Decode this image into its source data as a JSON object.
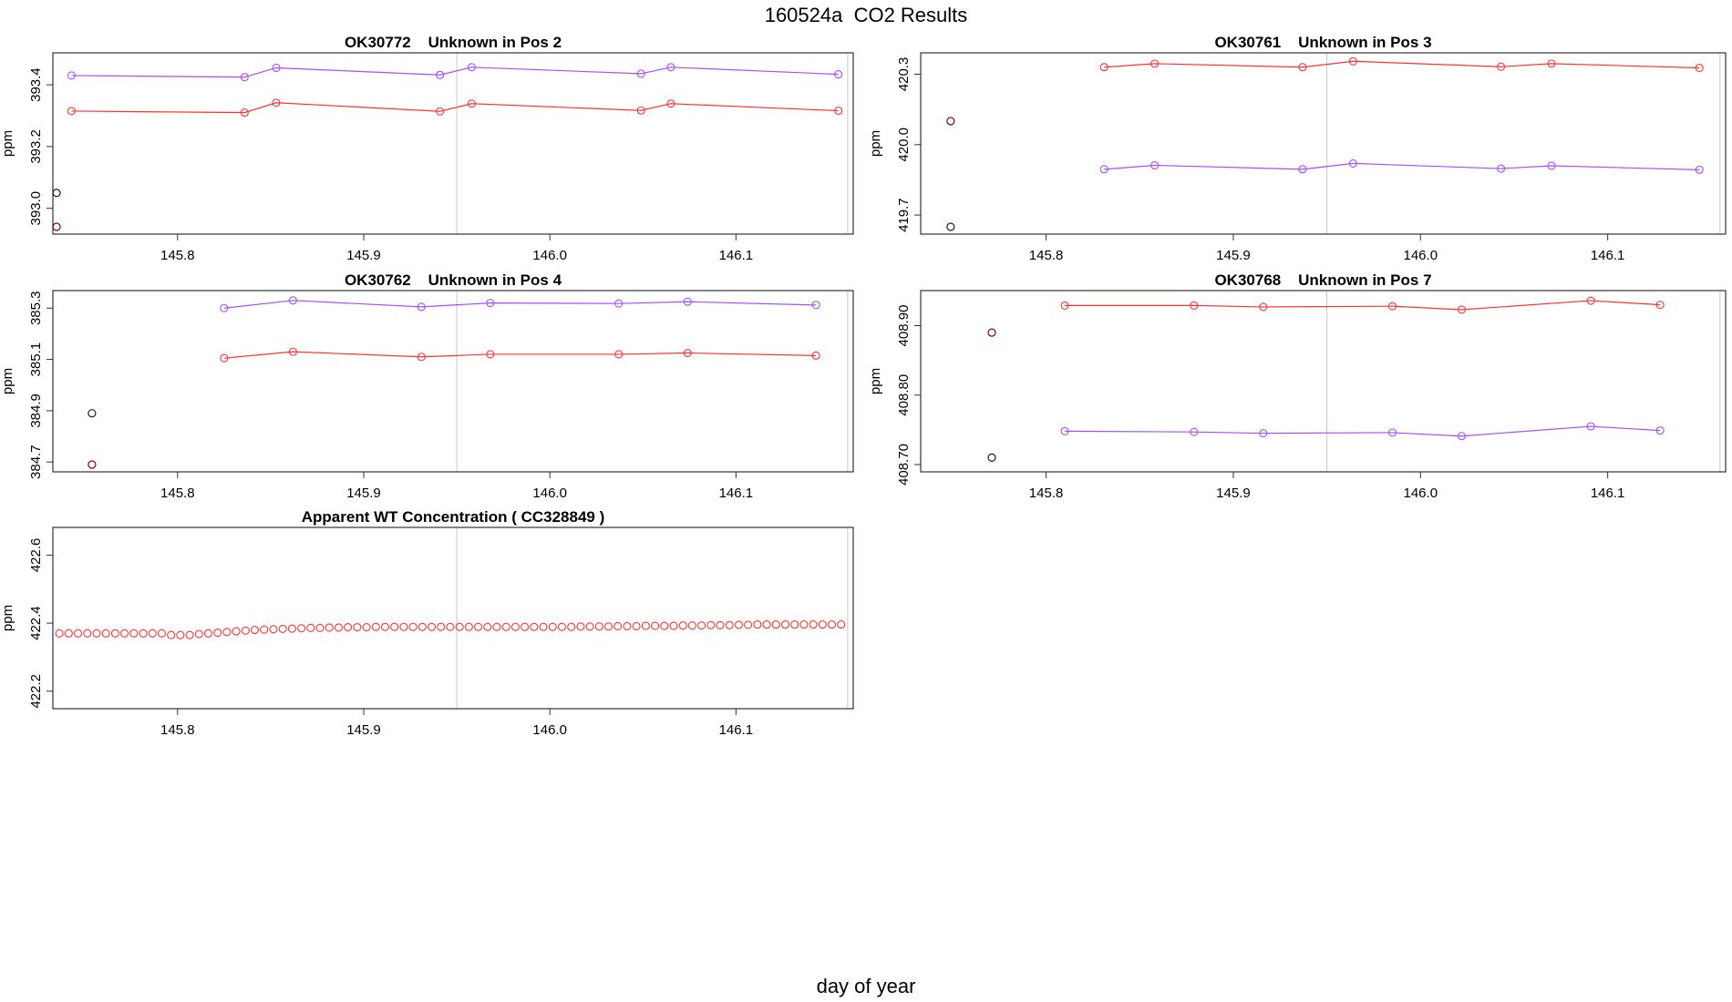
{
  "title": "160524a  CO2 Results",
  "xlabel": "day of year",
  "colors": {
    "series_red": "#ff3333",
    "series_purple": "#a64dff",
    "ref_dark_red": "#8b0000",
    "ref_dark_purple": "#2b0a4d",
    "frame": "#333333",
    "guide": "#c8c8c8"
  },
  "chart_data": [
    {
      "type": "line",
      "title": "OK30772    Unknown in Pos 2",
      "ylabel": "ppm",
      "xlim": [
        145.733,
        146.163
      ],
      "ylim": [
        392.94,
        393.48
      ],
      "xticks": [
        "145.8",
        "145.9",
        "146.0",
        "146.1"
      ],
      "yticks": [
        "393.0",
        "393.2",
        "393.4"
      ],
      "vlines": [
        145.95,
        146.16
      ],
      "series": [
        {
          "color": "purple",
          "x": [
            145.743,
            145.836,
            145.853,
            145.941,
            145.958,
            146.049,
            146.065,
            146.155
          ],
          "y": [
            393.43,
            393.425,
            393.455,
            393.432,
            393.457,
            393.436,
            393.457,
            393.434
          ]
        },
        {
          "color": "red",
          "x": [
            145.743,
            145.836,
            145.853,
            145.941,
            145.958,
            146.049,
            146.065,
            146.155
          ],
          "y": [
            393.315,
            393.31,
            393.342,
            393.314,
            393.339,
            393.317,
            393.339,
            393.316
          ]
        }
      ],
      "points": [
        {
          "color": "dark_purple",
          "x": 145.735,
          "y": 393.05
        },
        {
          "color": "dark_red",
          "x": 145.735,
          "y": 392.94
        }
      ]
    },
    {
      "type": "line",
      "title": "OK30761    Unknown in Pos 3",
      "ylabel": "ppm",
      "xlim": [
        145.733,
        146.163
      ],
      "ylim": [
        419.65,
        420.36
      ],
      "xticks": [
        "145.8",
        "145.9",
        "146.0",
        "146.1"
      ],
      "yticks": [
        "419.7",
        "420.0",
        "420.3"
      ],
      "vlines": [
        145.95,
        146.16
      ],
      "series": [
        {
          "color": "red",
          "x": [
            145.831,
            145.858,
            145.937,
            145.964,
            146.043,
            146.07,
            146.149
          ],
          "y": [
            420.33,
            420.345,
            420.33,
            420.355,
            420.332,
            420.345,
            420.327
          ]
        },
        {
          "color": "purple",
          "x": [
            145.831,
            145.858,
            145.937,
            145.964,
            146.043,
            146.07,
            146.149
          ],
          "y": [
            419.895,
            419.912,
            419.895,
            419.92,
            419.898,
            419.91,
            419.893
          ]
        }
      ],
      "points": [
        {
          "color": "dark_red",
          "x": 145.749,
          "y": 420.1
        },
        {
          "color": "dark_purple",
          "x": 145.749,
          "y": 419.65
        }
      ]
    },
    {
      "type": "line",
      "title": "OK30762    Unknown in Pos 4",
      "ylabel": "ppm",
      "xlim": [
        145.733,
        146.163
      ],
      "ylim": [
        384.69,
        385.34
      ],
      "xticks": [
        "145.8",
        "145.9",
        "146.0",
        "146.1"
      ],
      "yticks": [
        "384.7",
        "384.9",
        "385.1",
        "385.3"
      ],
      "vlines": [
        145.95,
        146.16
      ],
      "series": [
        {
          "color": "purple",
          "x": [
            145.825,
            145.862,
            145.931,
            145.968,
            146.037,
            146.074,
            146.143
          ],
          "y": [
            385.3,
            385.33,
            385.305,
            385.32,
            385.318,
            385.325,
            385.312
          ]
        },
        {
          "color": "red",
          "x": [
            145.825,
            145.862,
            145.931,
            145.968,
            146.037,
            146.074,
            146.143
          ],
          "y": [
            385.105,
            385.13,
            385.11,
            385.12,
            385.12,
            385.125,
            385.115
          ]
        }
      ],
      "points": [
        {
          "color": "dark_purple",
          "x": 145.754,
          "y": 384.89
        },
        {
          "color": "dark_red",
          "x": 145.754,
          "y": 384.69
        }
      ]
    },
    {
      "type": "line",
      "title": "OK30768    Unknown in Pos 7",
      "ylabel": "ppm",
      "xlim": [
        145.733,
        146.163
      ],
      "ylim": [
        408.7,
        408.94
      ],
      "xticks": [
        "145.8",
        "145.9",
        "146.0",
        "146.1"
      ],
      "yticks": [
        "408.70",
        "408.80",
        "408.90"
      ],
      "vlines": [
        145.95,
        146.16
      ],
      "series": [
        {
          "color": "red",
          "x": [
            145.81,
            145.879,
            145.916,
            145.985,
            146.022,
            146.091,
            146.128
          ],
          "y": [
            408.929,
            408.929,
            408.927,
            408.928,
            408.923,
            408.936,
            408.93
          ]
        },
        {
          "color": "purple",
          "x": [
            145.81,
            145.879,
            145.916,
            145.985,
            146.022,
            146.091,
            146.128
          ],
          "y": [
            408.748,
            408.747,
            408.745,
            408.746,
            408.741,
            408.755,
            408.749
          ]
        }
      ],
      "points": [
        {
          "color": "dark_red",
          "x": 145.771,
          "y": 408.89
        },
        {
          "color": "dark_purple",
          "x": 145.771,
          "y": 408.71
        }
      ]
    },
    {
      "type": "scatter",
      "title": "Apparent WT Concentration ( CC328849 )",
      "ylabel": "ppm",
      "xlim": [
        145.733,
        146.163
      ],
      "ylim": [
        422.17,
        422.66
      ],
      "xticks": [
        "145.8",
        "145.9",
        "146.0",
        "146.1"
      ],
      "yticks": [
        "422.2",
        "422.4",
        "422.6"
      ],
      "vlines": [
        145.95,
        146.16
      ],
      "series": [
        {
          "color": "red",
          "x_start": 145.7365,
          "x_step": 0.005,
          "count": 85,
          "y": [
            422.37,
            422.37,
            422.37,
            422.37,
            422.37,
            422.37,
            422.37,
            422.37,
            422.37,
            422.37,
            422.37,
            422.37,
            422.365,
            422.365,
            422.365,
            422.368,
            422.37,
            422.372,
            422.374,
            422.376,
            422.378,
            422.38,
            422.381,
            422.382,
            422.383,
            422.384,
            422.385,
            422.386,
            422.386,
            422.387,
            422.387,
            422.388,
            422.388,
            422.388,
            422.389,
            422.389,
            422.389,
            422.389,
            422.389,
            422.389,
            422.389,
            422.389,
            422.389,
            422.389,
            422.389,
            422.389,
            422.389,
            422.389,
            422.389,
            422.389,
            422.389,
            422.389,
            422.389,
            422.389,
            422.389,
            422.389,
            422.39,
            422.39,
            422.39,
            422.39,
            422.391,
            422.391,
            422.391,
            422.392,
            422.392,
            422.392,
            422.392,
            422.393,
            422.393,
            422.393,
            422.394,
            422.394,
            422.394,
            422.395,
            422.395,
            422.396,
            422.396,
            422.396,
            422.396,
            422.396,
            422.396,
            422.396,
            422.396,
            422.396,
            422.396
          ]
        }
      ],
      "points": []
    }
  ]
}
